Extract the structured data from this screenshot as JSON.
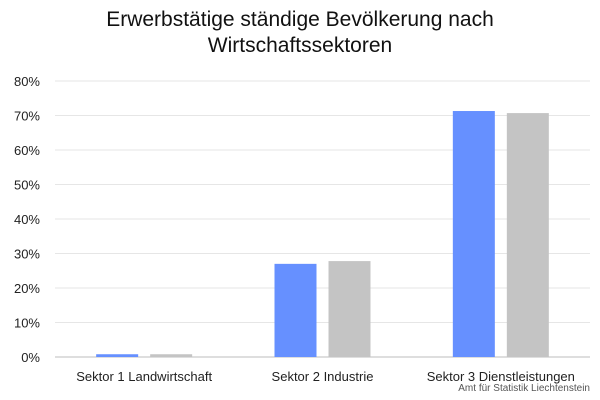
{
  "chart_data": {
    "type": "bar",
    "title": "Erwerbstätige ständige Bevölkerung nach Wirtschaftssektoren",
    "title_lines": [
      "Erwerbstätige ständige Bevölkerung nach",
      "Wirtschaftssektoren"
    ],
    "categories": [
      "Sektor 1 Landwirtschaft",
      "Sektor 2 Industrie",
      "Sektor 3 Dienstleistungen"
    ],
    "series": [
      {
        "values": [
          0.8,
          27.0,
          71.3
        ],
        "color": "#6690ff"
      },
      {
        "values": [
          0.8,
          27.8,
          70.7
        ],
        "color": "#c4c4c4"
      }
    ],
    "ylim": [
      0,
      80
    ],
    "yticks": [
      0,
      10,
      20,
      30,
      40,
      50,
      60,
      70,
      80
    ],
    "ytick_labels": [
      "0%",
      "10%",
      "20%",
      "30%",
      "40%",
      "50%",
      "60%",
      "70%",
      "80%"
    ],
    "grid": true,
    "legend": "none",
    "source": "Amt für Statistik Liechtenstein"
  }
}
